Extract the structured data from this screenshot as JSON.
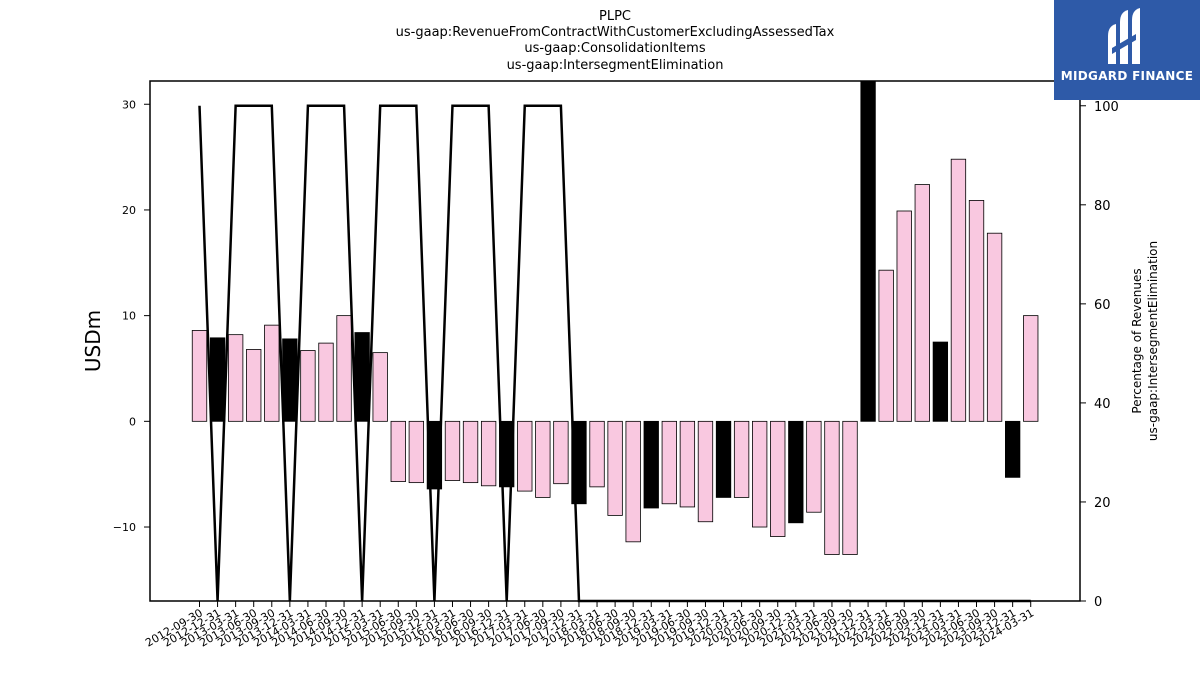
{
  "chart_data": {
    "type": "bar",
    "title_lines": [
      "PLPC",
      "us-gaap:RevenueFromContractWithCustomerExcludingAssessedTax",
      "us-gaap:ConsolidationItems",
      "us-gaap:IntersegmentElimination"
    ],
    "ylabel": "USDm",
    "ylabel_right": [
      "Percentage of Revenues",
      "us-gaap:IntersegmentElimination"
    ],
    "ylim": [
      -17,
      32.2
    ],
    "ylim_right": [
      0,
      105
    ],
    "yticks": [
      -10,
      0,
      10,
      20,
      30
    ],
    "yticks_right": [
      0,
      20,
      40,
      60,
      80,
      100
    ],
    "categories": [
      "2012-09-30",
      "2012-12-31",
      "2013-03-31",
      "2013-06-30",
      "2013-09-30",
      "2013-12-31",
      "2014-03-31",
      "2014-06-30",
      "2014-09-30",
      "2014-12-31",
      "2015-03-31",
      "2015-06-30",
      "2015-09-30",
      "2015-12-31",
      "2016-03-31",
      "2016-06-30",
      "2016-09-30",
      "2016-12-31",
      "2017-03-31",
      "2017-06-30",
      "2017-09-30",
      "2017-12-31",
      "2018-03-31",
      "2018-06-30",
      "2018-09-30",
      "2018-12-31",
      "2019-03-31",
      "2019-06-30",
      "2019-09-30",
      "2019-12-31",
      "2020-03-31",
      "2020-06-30",
      "2020-09-30",
      "2020-12-31",
      "2021-03-31",
      "2021-06-30",
      "2021-09-30",
      "2021-12-31",
      "2022-03-31",
      "2022-06-30",
      "2022-09-30",
      "2022-12-31",
      "2023-03-31",
      "2023-06-30",
      "2023-09-30",
      "2023-12-31",
      "2024-03-31"
    ],
    "series": [
      {
        "type": "bar",
        "values": [
          8.6,
          7.9,
          8.2,
          6.8,
          9.1,
          7.8,
          6.7,
          7.4,
          10.0,
          8.4,
          6.5,
          -5.7,
          -5.8,
          -6.4,
          -5.6,
          -5.8,
          -6.1,
          -6.2,
          -6.6,
          -7.2,
          -5.9,
          -7.8,
          -6.2,
          -8.9,
          -11.4,
          -8.2,
          -7.8,
          -8.1,
          -9.5,
          -7.2,
          -7.2,
          -10.0,
          -10.9,
          -9.6,
          -8.6,
          -12.6,
          -12.6,
          32.2,
          14.3,
          19.9,
          22.4,
          7.5,
          24.8,
          20.9,
          17.8,
          -5.3,
          10.0
        ],
        "colors": [
          "#f9c8e0",
          "#000000",
          "#f9c8e0",
          "#f9c8e0",
          "#f9c8e0",
          "#000000",
          "#f9c8e0",
          "#f9c8e0",
          "#f9c8e0",
          "#000000",
          "#f9c8e0",
          "#f9c8e0",
          "#f9c8e0",
          "#000000",
          "#f9c8e0",
          "#f9c8e0",
          "#f9c8e0",
          "#000000",
          "#f9c8e0",
          "#f9c8e0",
          "#f9c8e0",
          "#000000",
          "#f9c8e0",
          "#f9c8e0",
          "#f9c8e0",
          "#000000",
          "#f9c8e0",
          "#f9c8e0",
          "#f9c8e0",
          "#000000",
          "#f9c8e0",
          "#f9c8e0",
          "#f9c8e0",
          "#000000",
          "#f9c8e0",
          "#f9c8e0",
          "#f9c8e0",
          "#000000",
          "#f9c8e0",
          "#f9c8e0",
          "#f9c8e0",
          "#000000",
          "#f9c8e0",
          "#f9c8e0",
          "#f9c8e0",
          "#000000",
          "#f9c8e0"
        ]
      },
      {
        "type": "line",
        "axis": "right",
        "color": "#000000",
        "values": [
          100,
          0,
          100,
          100,
          100,
          0,
          100,
          100,
          100,
          0,
          100,
          100,
          100,
          0,
          100,
          100,
          100,
          0,
          100,
          100,
          100,
          0,
          0,
          0,
          0,
          0,
          0,
          0,
          0,
          0,
          0,
          0,
          0,
          0,
          0,
          0,
          0,
          0,
          0,
          0,
          0,
          0,
          0,
          0,
          0,
          0,
          0
        ]
      }
    ]
  },
  "logo": {
    "text": "MIDGARD FINANCE",
    "background": "#2e5aa8"
  }
}
